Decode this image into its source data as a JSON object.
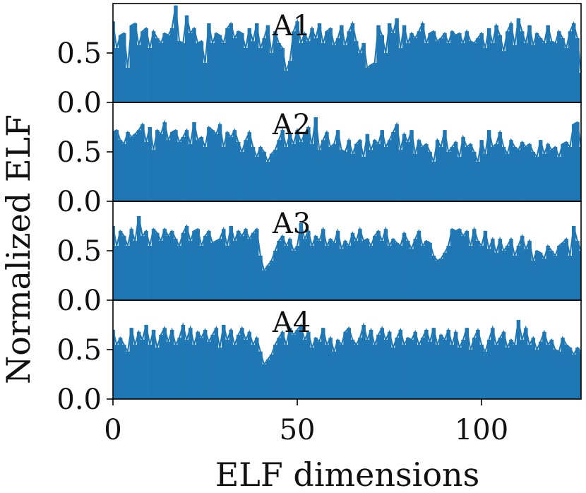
{
  "chart_data": {
    "type": "bar",
    "xlabel": "ELF dimensions",
    "ylabel": "Normalized ELF",
    "x_ticks": [
      "0",
      "50",
      "100"
    ],
    "x_tick_values": [
      0,
      50,
      100
    ],
    "xlim": [
      0,
      127
    ],
    "y_ticks": [
      "0.0",
      "0.5"
    ],
    "y_tick_values": [
      0.0,
      0.5
    ],
    "ylim": [
      0,
      1.0
    ],
    "color": "#1f77b4",
    "series": [
      {
        "name": "A1",
        "values": [
          0.82,
          0.55,
          0.68,
          0.7,
          0.35,
          0.78,
          0.8,
          0.58,
          0.72,
          0.75,
          0.55,
          0.72,
          0.65,
          0.6,
          0.7,
          0.68,
          0.75,
          0.98,
          0.62,
          0.6,
          0.88,
          0.7,
          0.75,
          0.6,
          0.62,
          0.4,
          0.8,
          0.6,
          0.7,
          0.68,
          0.6,
          0.75,
          0.8,
          0.65,
          0.72,
          0.7,
          0.55,
          0.75,
          0.62,
          0.8,
          0.55,
          0.65,
          0.78,
          0.5,
          0.72,
          0.6,
          0.55,
          0.32,
          0.42,
          0.72,
          0.82,
          0.6,
          0.7,
          0.62,
          0.75,
          0.65,
          0.8,
          0.6,
          0.72,
          0.75,
          0.58,
          0.65,
          0.78,
          0.58,
          0.72,
          0.8,
          0.62,
          0.5,
          0.6,
          0.35,
          0.38,
          0.4,
          0.78,
          0.68,
          0.5,
          0.8,
          0.7,
          0.85,
          0.55,
          0.78,
          0.6,
          0.7,
          0.65,
          0.72,
          0.8,
          0.6,
          0.7,
          0.72,
          0.62,
          0.65,
          0.7,
          0.6,
          0.72,
          0.68,
          0.7,
          0.6,
          0.72,
          0.62,
          0.6,
          0.65,
          0.7,
          0.55,
          0.75,
          0.6,
          0.78,
          0.68,
          0.52,
          0.72,
          0.8,
          0.58,
          0.85,
          0.72,
          0.6,
          0.78,
          0.58,
          0.7,
          0.65,
          0.6,
          0.78,
          0.62,
          0.6,
          0.72,
          0.65,
          0.55,
          0.72,
          0.8,
          0.65,
          0.3
        ]
      },
      {
        "name": "A2",
        "values": [
          0.7,
          0.72,
          0.62,
          0.58,
          0.7,
          0.65,
          0.68,
          0.72,
          0.78,
          0.6,
          0.75,
          0.52,
          0.72,
          0.68,
          0.8,
          0.62,
          0.7,
          0.72,
          0.6,
          0.65,
          0.72,
          0.58,
          0.8,
          0.62,
          0.65,
          0.55,
          0.75,
          0.72,
          0.68,
          0.78,
          0.55,
          0.7,
          0.65,
          0.72,
          0.6,
          0.5,
          0.62,
          0.7,
          0.55,
          0.45,
          0.55,
          0.5,
          0.4,
          0.48,
          0.52,
          0.62,
          0.72,
          0.55,
          0.68,
          0.58,
          0.72,
          0.6,
          0.68,
          0.75,
          0.58,
          0.85,
          0.52,
          0.62,
          0.7,
          0.55,
          0.58,
          0.72,
          0.52,
          0.5,
          0.62,
          0.48,
          0.58,
          0.62,
          0.45,
          0.68,
          0.52,
          0.62,
          0.58,
          0.72,
          0.55,
          0.62,
          0.7,
          0.78,
          0.52,
          0.68,
          0.6,
          0.72,
          0.48,
          0.62,
          0.55,
          0.58,
          0.5,
          0.4,
          0.62,
          0.55,
          0.72,
          0.5,
          0.55,
          0.6,
          0.45,
          0.65,
          0.55,
          0.58,
          0.5,
          0.4,
          0.62,
          0.48,
          0.72,
          0.55,
          0.58,
          0.7,
          0.55,
          0.48,
          0.62,
          0.55,
          0.52,
          0.6,
          0.55,
          0.58,
          0.5,
          0.45,
          0.62,
          0.48,
          0.58,
          0.52,
          0.55,
          0.45,
          0.58,
          0.6,
          0.55,
          0.78,
          0.8,
          0.55
        ]
      },
      {
        "name": "A3",
        "values": [
          0.75,
          0.55,
          0.7,
          0.65,
          0.55,
          0.72,
          0.6,
          0.85,
          0.65,
          0.7,
          0.55,
          0.72,
          0.68,
          0.6,
          0.72,
          0.65,
          0.7,
          0.62,
          0.55,
          0.68,
          0.75,
          0.6,
          0.7,
          0.72,
          0.55,
          0.65,
          0.7,
          0.58,
          0.6,
          0.62,
          0.72,
          0.55,
          0.75,
          0.6,
          0.7,
          0.65,
          0.72,
          0.62,
          0.68,
          0.72,
          0.45,
          0.3,
          0.35,
          0.4,
          0.5,
          0.6,
          0.65,
          0.55,
          0.62,
          0.5,
          0.55,
          0.78,
          0.62,
          0.7,
          0.55,
          0.65,
          0.6,
          0.72,
          0.55,
          0.62,
          0.58,
          0.7,
          0.52,
          0.6,
          0.55,
          0.68,
          0.6,
          0.72,
          0.6,
          0.62,
          0.55,
          0.65,
          0.7,
          0.6,
          0.72,
          0.55,
          0.62,
          0.58,
          0.55,
          0.68,
          0.6,
          0.52,
          0.62,
          0.7,
          0.55,
          0.6,
          0.58,
          0.45,
          0.4,
          0.42,
          0.48,
          0.55,
          0.72,
          0.7,
          0.72,
          0.65,
          0.7,
          0.55,
          0.72,
          0.6,
          0.55,
          0.7,
          0.52,
          0.62,
          0.48,
          0.62,
          0.5,
          0.55,
          0.62,
          0.45,
          0.55,
          0.65,
          0.52,
          0.6,
          0.4,
          0.5,
          0.48,
          0.42,
          0.55,
          0.5,
          0.45,
          0.55,
          0.58,
          0.62,
          0.45,
          0.75,
          0.6,
          0.5
        ]
      },
      {
        "name": "A4",
        "values": [
          0.7,
          0.55,
          0.62,
          0.55,
          0.48,
          0.72,
          0.55,
          0.68,
          0.6,
          0.75,
          0.55,
          0.7,
          0.52,
          0.65,
          0.72,
          0.58,
          0.7,
          0.55,
          0.62,
          0.75,
          0.6,
          0.72,
          0.55,
          0.68,
          0.62,
          0.7,
          0.58,
          0.65,
          0.72,
          0.52,
          0.75,
          0.6,
          0.7,
          0.55,
          0.65,
          0.72,
          0.6,
          0.68,
          0.55,
          0.62,
          0.48,
          0.35,
          0.4,
          0.45,
          0.55,
          0.62,
          0.68,
          0.55,
          0.72,
          0.65,
          0.7,
          0.75,
          0.6,
          0.68,
          0.52,
          0.62,
          0.58,
          0.72,
          0.55,
          0.62,
          0.48,
          0.6,
          0.55,
          0.68,
          0.72,
          0.6,
          0.55,
          0.62,
          0.75,
          0.6,
          0.7,
          0.55,
          0.65,
          0.72,
          0.6,
          0.68,
          0.52,
          0.62,
          0.7,
          0.55,
          0.62,
          0.6,
          0.68,
          0.55,
          0.62,
          0.7,
          0.58,
          0.72,
          0.55,
          0.65,
          0.6,
          0.7,
          0.55,
          0.68,
          0.52,
          0.6,
          0.72,
          0.5,
          0.62,
          0.7,
          0.55,
          0.48,
          0.6,
          0.72,
          0.55,
          0.62,
          0.68,
          0.52,
          0.6,
          0.55,
          0.8,
          0.6,
          0.72,
          0.55,
          0.62,
          0.5,
          0.58,
          0.68,
          0.55,
          0.6,
          0.5,
          0.48,
          0.62,
          0.55,
          0.52,
          0.45,
          0.52,
          0.48
        ]
      }
    ]
  }
}
